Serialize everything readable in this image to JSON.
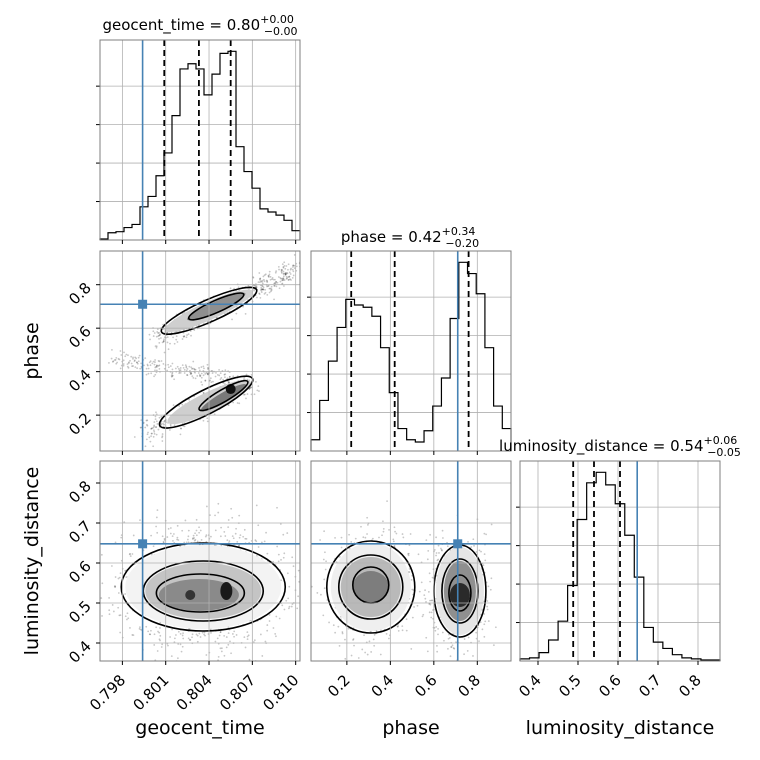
{
  "chart_data": {
    "type": "corner",
    "parameters": [
      "geocent_time",
      "phase",
      "luminosity_distance"
    ],
    "axis_labels": {
      "x": [
        "geocent_time",
        "phase",
        "luminosity_distance"
      ],
      "y": [
        "",
        "phase",
        "luminosity_distance"
      ]
    },
    "titles": [
      {
        "param": "geocent_time",
        "text": "geocent_time = 0.80",
        "sup": "+0.00",
        "sub": "−0.00"
      },
      {
        "param": "phase",
        "text": "phase = 0.42",
        "sup": "+0.34",
        "sub": "−0.20"
      },
      {
        "param": "luminosity_distance",
        "text": "luminosity_distance = 0.54",
        "sup": "+0.06",
        "sub": "−0.05"
      }
    ],
    "ranges": {
      "geocent_time": [
        0.79645,
        0.8103
      ],
      "phase": [
        0.035,
        0.955
      ],
      "luminosity_distance": [
        0.355,
        0.855
      ]
    },
    "ticks": {
      "geocent_time": {
        "values": [
          0.798,
          0.801,
          0.804,
          0.807,
          0.81
        ],
        "labels": [
          "0.798",
          "0.801",
          "0.804",
          "0.807",
          "0.810"
        ]
      },
      "phase": {
        "values": [
          0.2,
          0.4,
          0.6,
          0.8
        ],
        "labels": [
          "0.2",
          "0.4",
          "0.6",
          "0.8"
        ]
      },
      "luminosity_distance": {
        "values": [
          0.4,
          0.5,
          0.6,
          0.7,
          0.8
        ],
        "labels": [
          "0.4",
          "0.5",
          "0.6",
          "0.7",
          "0.8"
        ]
      }
    },
    "truths": {
      "geocent_time": 0.7994,
      "phase": 0.71,
      "luminosity_distance": 0.648
    },
    "quantiles": {
      "geocent_time": [
        0.8009,
        0.8033,
        0.8055
      ],
      "phase": [
        0.22,
        0.42,
        0.76
      ],
      "luminosity_distance": [
        0.488,
        0.54,
        0.605
      ]
    },
    "histograms": {
      "geocent_time": {
        "x_start": 0.79645,
        "x_end": 0.8103,
        "counts": [
          1,
          7,
          8,
          12,
          15,
          32,
          42,
          62,
          84,
          120,
          165,
          170,
          165,
          140,
          160,
          180,
          182,
          90,
          66,
          50,
          30,
          27,
          24,
          19,
          9
        ]
      },
      "phase": {
        "x_start": 0.035,
        "x_end": 0.955,
        "counts": [
          10,
          45,
          80,
          110,
          135,
          130,
          128,
          120,
          92,
          52,
          20,
          10,
          8,
          18,
          40,
          65,
          118,
          168,
          158,
          140,
          92,
          40,
          20
        ]
      },
      "luminosity_distance": {
        "x_start": 0.355,
        "x_end": 0.855,
        "counts": [
          2,
          3,
          8,
          20,
          38,
          72,
          135,
          170,
          180,
          168,
          150,
          120,
          80,
          32,
          18,
          12,
          6,
          3,
          2,
          1,
          1
        ]
      }
    },
    "grid": true
  }
}
